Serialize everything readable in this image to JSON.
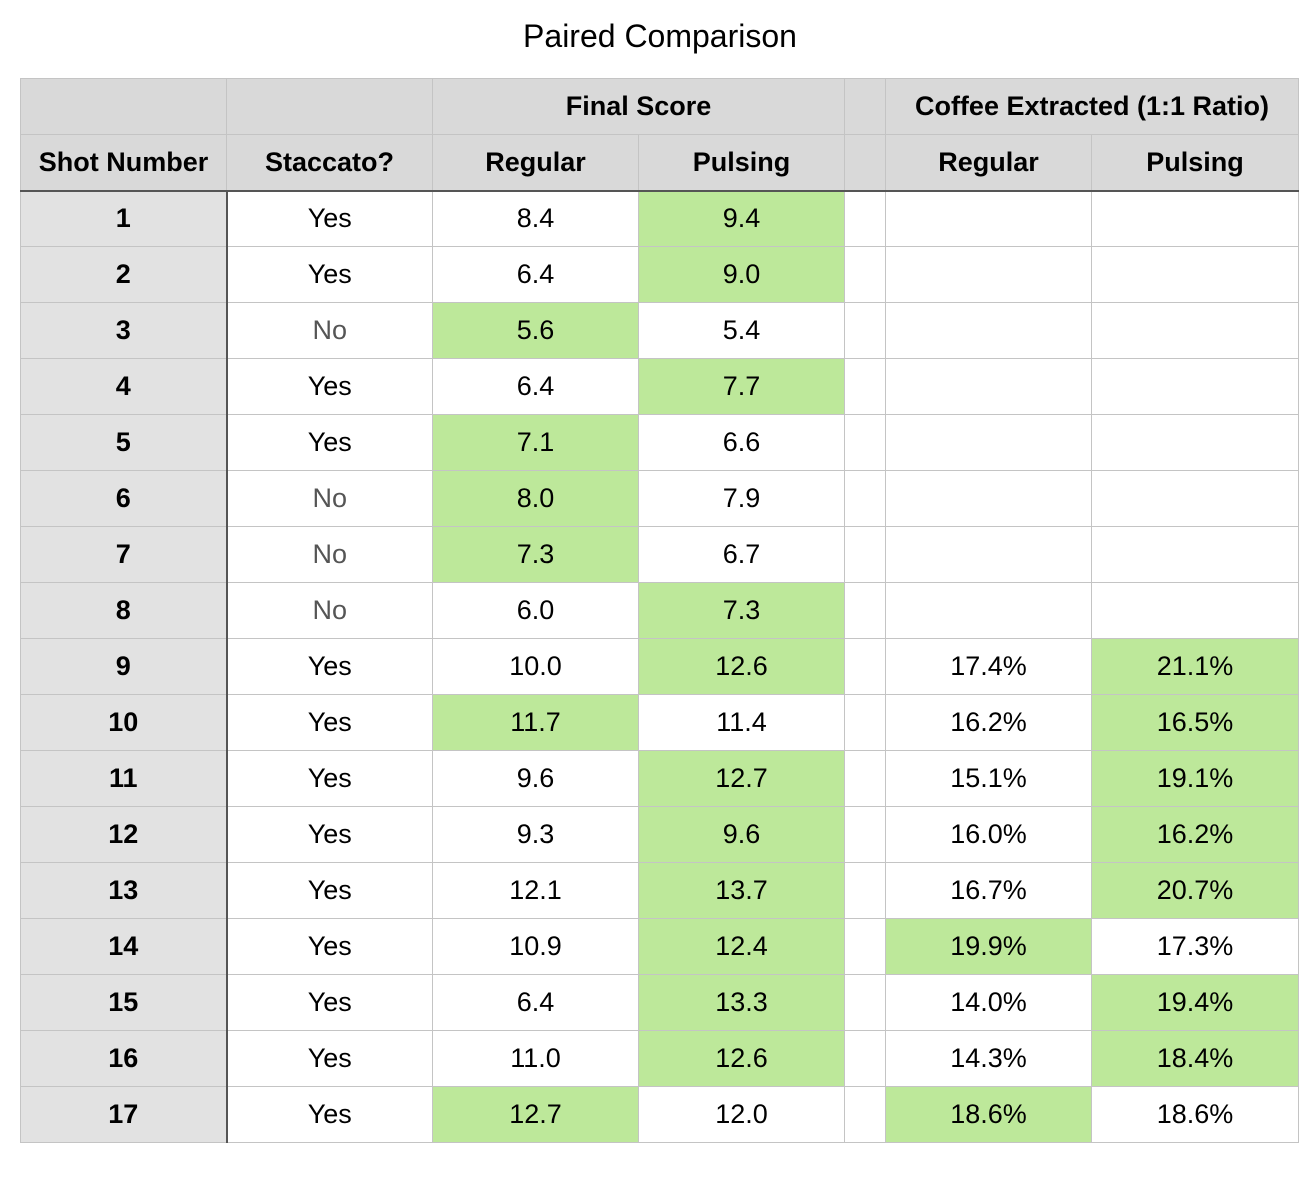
{
  "title": "Paired Comparison",
  "header": {
    "final_score": "Final Score",
    "coffee_extracted": "Coffee Extracted (1:1 Ratio)",
    "shot_number": "Shot Number",
    "staccato": "Staccato?",
    "regular": "Regular",
    "pulsing": "Pulsing",
    "regular2": "Regular",
    "pulsing2": "Pulsing"
  },
  "colors": {
    "highlight": "#bde89a",
    "header_bg": "#d9d9d9",
    "rowhead_bg": "#e2e2e2"
  },
  "rows": [
    {
      "shot": "1",
      "staccato": "Yes",
      "fs_reg": "8.4",
      "fs_pul": "9.4",
      "ce_reg": "",
      "ce_pul": "",
      "hl": [
        "fs_pul"
      ]
    },
    {
      "shot": "2",
      "staccato": "Yes",
      "fs_reg": "6.4",
      "fs_pul": "9.0",
      "ce_reg": "",
      "ce_pul": "",
      "hl": [
        "fs_pul"
      ]
    },
    {
      "shot": "3",
      "staccato": "No",
      "fs_reg": "5.6",
      "fs_pul": "5.4",
      "ce_reg": "",
      "ce_pul": "",
      "hl": [
        "fs_reg"
      ]
    },
    {
      "shot": "4",
      "staccato": "Yes",
      "fs_reg": "6.4",
      "fs_pul": "7.7",
      "ce_reg": "",
      "ce_pul": "",
      "hl": [
        "fs_pul"
      ]
    },
    {
      "shot": "5",
      "staccato": "Yes",
      "fs_reg": "7.1",
      "fs_pul": "6.6",
      "ce_reg": "",
      "ce_pul": "",
      "hl": [
        "fs_reg"
      ]
    },
    {
      "shot": "6",
      "staccato": "No",
      "fs_reg": "8.0",
      "fs_pul": "7.9",
      "ce_reg": "",
      "ce_pul": "",
      "hl": [
        "fs_reg"
      ]
    },
    {
      "shot": "7",
      "staccato": "No",
      "fs_reg": "7.3",
      "fs_pul": "6.7",
      "ce_reg": "",
      "ce_pul": "",
      "hl": [
        "fs_reg"
      ]
    },
    {
      "shot": "8",
      "staccato": "No",
      "fs_reg": "6.0",
      "fs_pul": "7.3",
      "ce_reg": "",
      "ce_pul": "",
      "hl": [
        "fs_pul"
      ]
    },
    {
      "shot": "9",
      "staccato": "Yes",
      "fs_reg": "10.0",
      "fs_pul": "12.6",
      "ce_reg": "17.4%",
      "ce_pul": "21.1%",
      "hl": [
        "fs_pul",
        "ce_pul"
      ]
    },
    {
      "shot": "10",
      "staccato": "Yes",
      "fs_reg": "11.7",
      "fs_pul": "11.4",
      "ce_reg": "16.2%",
      "ce_pul": "16.5%",
      "hl": [
        "fs_reg",
        "ce_pul"
      ]
    },
    {
      "shot": "11",
      "staccato": "Yes",
      "fs_reg": "9.6",
      "fs_pul": "12.7",
      "ce_reg": "15.1%",
      "ce_pul": "19.1%",
      "hl": [
        "fs_pul",
        "ce_pul"
      ]
    },
    {
      "shot": "12",
      "staccato": "Yes",
      "fs_reg": "9.3",
      "fs_pul": "9.6",
      "ce_reg": "16.0%",
      "ce_pul": "16.2%",
      "hl": [
        "fs_pul",
        "ce_pul"
      ]
    },
    {
      "shot": "13",
      "staccato": "Yes",
      "fs_reg": "12.1",
      "fs_pul": "13.7",
      "ce_reg": "16.7%",
      "ce_pul": "20.7%",
      "hl": [
        "fs_pul",
        "ce_pul"
      ]
    },
    {
      "shot": "14",
      "staccato": "Yes",
      "fs_reg": "10.9",
      "fs_pul": "12.4",
      "ce_reg": "19.9%",
      "ce_pul": "17.3%",
      "hl": [
        "fs_pul",
        "ce_reg"
      ]
    },
    {
      "shot": "15",
      "staccato": "Yes",
      "fs_reg": "6.4",
      "fs_pul": "13.3",
      "ce_reg": "14.0%",
      "ce_pul": "19.4%",
      "hl": [
        "fs_pul",
        "ce_pul"
      ]
    },
    {
      "shot": "16",
      "staccato": "Yes",
      "fs_reg": "11.0",
      "fs_pul": "12.6",
      "ce_reg": "14.3%",
      "ce_pul": "18.4%",
      "hl": [
        "fs_pul",
        "ce_pul"
      ]
    },
    {
      "shot": "17",
      "staccato": "Yes",
      "fs_reg": "12.7",
      "fs_pul": "12.0",
      "ce_reg": "18.6%",
      "ce_pul": "18.6%",
      "hl": [
        "fs_reg",
        "ce_reg"
      ]
    }
  ]
}
